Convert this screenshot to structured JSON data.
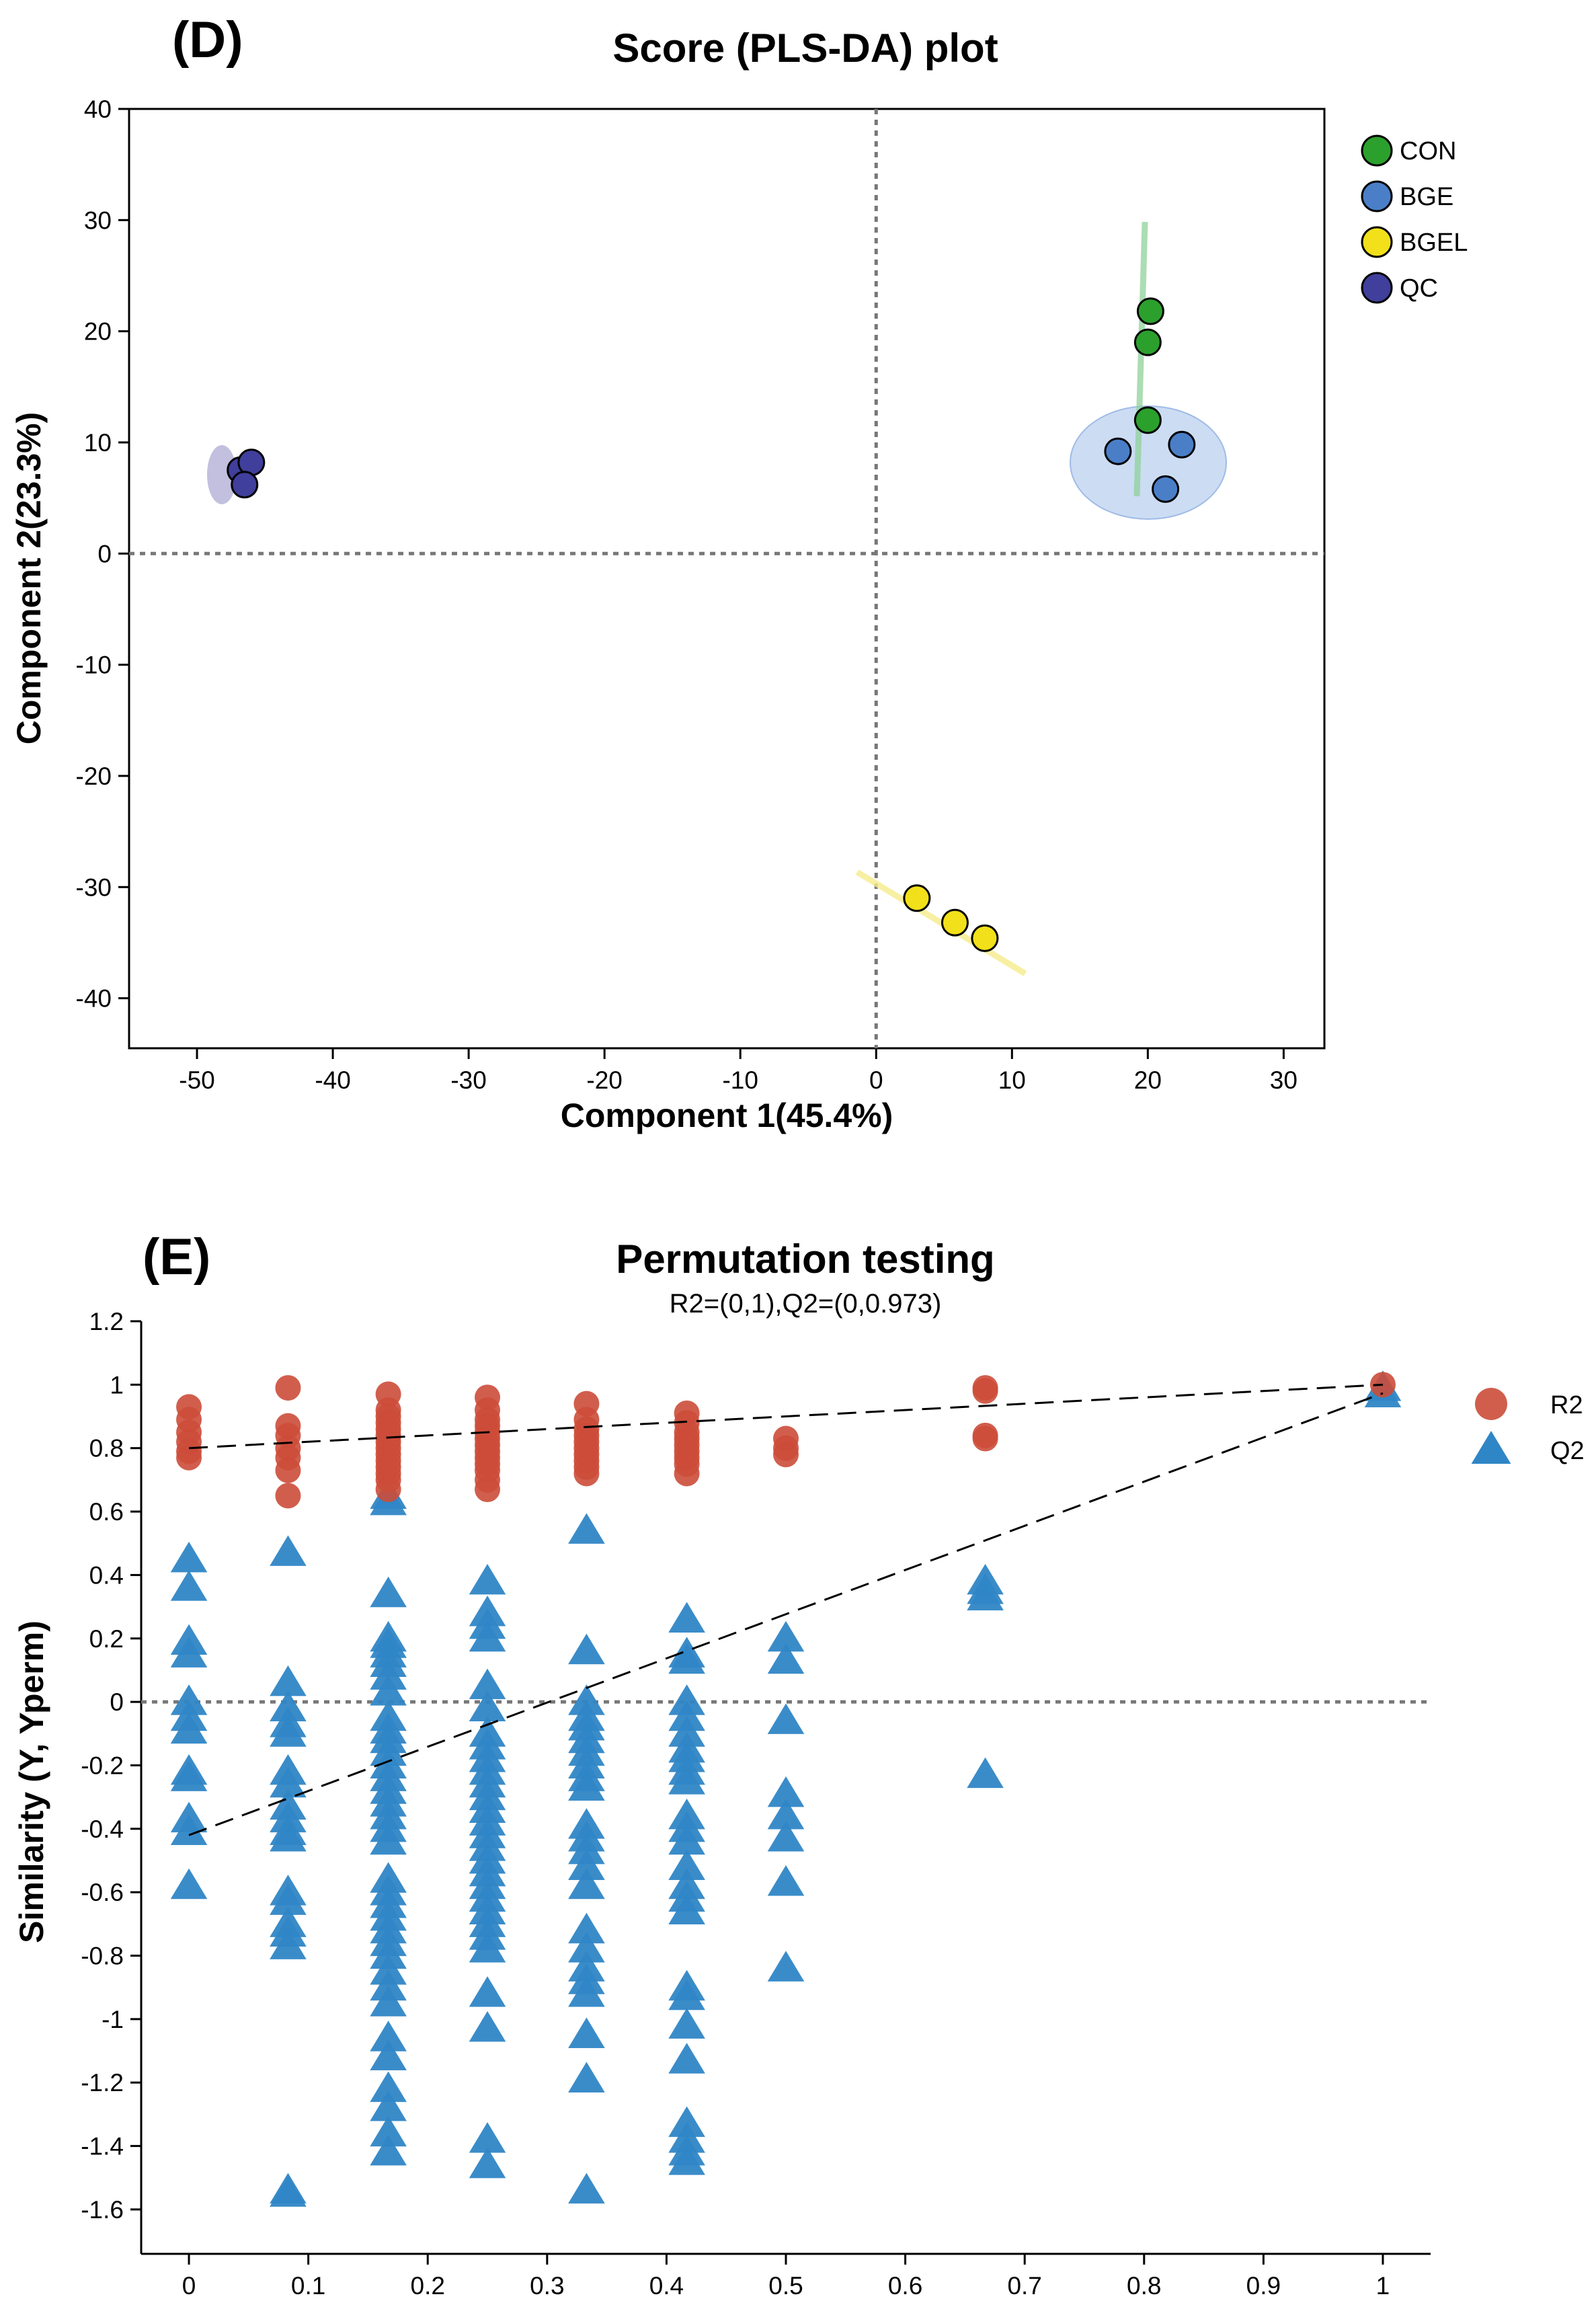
{
  "chart_data": [
    {
      "panel": "(D)",
      "type": "scatter",
      "title": "Score (PLS-DA) plot",
      "xlabel": "Component 1(45.4%)",
      "ylabel": "Component 2(23.3%)",
      "xlim": [
        -55,
        33
      ],
      "ylim": [
        -44.5,
        40
      ],
      "xticks": [
        -50,
        -40,
        -30,
        -20,
        -10,
        0,
        10,
        20,
        30
      ],
      "yticks": [
        40,
        30,
        20,
        10,
        0,
        -10,
        -20,
        -30,
        -40
      ],
      "xtick_labels": [
        "-50",
        "-40",
        "-30",
        "-20",
        "-10",
        "0",
        "10",
        "20",
        "30"
      ],
      "ytick_labels": [
        "40",
        "30",
        "20",
        "10",
        "0",
        "-10",
        "-20",
        "-30",
        "-40"
      ],
      "reference_lines": {
        "x": 0,
        "y": 0
      },
      "legend_position": "right",
      "series": [
        {
          "name": "CON",
          "color": "#2ca02c",
          "points": [
            [
              20.2,
              21.8
            ],
            [
              20.0,
              19.0
            ],
            [
              20.0,
              12.0
            ]
          ]
        },
        {
          "name": "BGE",
          "color": "#4a7fc8",
          "points": [
            [
              17.8,
              9.2
            ],
            [
              22.5,
              9.8
            ],
            [
              21.3,
              5.8
            ]
          ]
        },
        {
          "name": "BGEL",
          "color": "#f2e01a",
          "points": [
            [
              3.0,
              -31.0
            ],
            [
              5.8,
              -33.2
            ],
            [
              8.0,
              -34.6
            ]
          ]
        },
        {
          "name": "QC",
          "color": "#403f9c",
          "points": [
            [
              -46.8,
              7.5
            ],
            [
              -46.0,
              8.2
            ],
            [
              -46.5,
              6.2
            ]
          ]
        }
      ]
    },
    {
      "panel": "(E)",
      "type": "scatter",
      "title": "Permutation testing",
      "subtitle": "R2=(0,1),Q2=(0,0.973)",
      "xlabel": "",
      "ylabel": "Similarity (Y, Yperm)",
      "xlim": [
        -0.04,
        1.04
      ],
      "ylim": [
        -1.74,
        1.2
      ],
      "xticks": [
        0,
        0.1,
        0.2,
        0.3,
        0.4,
        0.5,
        0.6,
        0.7,
        0.8,
        0.9,
        1
      ],
      "xtick_labels": [
        "0",
        "0.1",
        "0.2",
        "0.3",
        "0.4",
        "0.5",
        "0.6",
        "0.7",
        "0.8",
        "0.9",
        "1"
      ],
      "yticks": [
        1.2,
        1,
        0.8,
        0.6,
        0.4,
        0.2,
        0,
        -0.2,
        -0.4,
        -0.6,
        -0.8,
        -1,
        -1.2,
        -1.4,
        -1.6
      ],
      "ytick_labels": [
        "1.2",
        "1",
        "0.8",
        "0.6",
        "0.4",
        "0.2",
        "0",
        "-0.2",
        "-0.4",
        "-0.6",
        "-0.8",
        "-1",
        "-1.2",
        "-1.4",
        "-1.6"
      ],
      "reference_lines": {
        "y": 0
      },
      "legend_position": "right",
      "regression_lines": [
        {
          "name": "R2",
          "from": [
            0,
            0.8
          ],
          "to": [
            1,
            1.0
          ]
        },
        {
          "name": "Q2",
          "from": [
            0,
            -0.42
          ],
          "to": [
            1,
            0.973
          ]
        }
      ],
      "series": [
        {
          "name": "R2",
          "marker": "circle",
          "color": "#cc4c3a",
          "points": [
            [
              0,
              0.93
            ],
            [
              0,
              0.89
            ],
            [
              0,
              0.85
            ],
            [
              0,
              0.82
            ],
            [
              0,
              0.79
            ],
            [
              0,
              0.77
            ],
            [
              0.083,
              0.99
            ],
            [
              0.083,
              0.87
            ],
            [
              0.083,
              0.84
            ],
            [
              0.083,
              0.8
            ],
            [
              0.083,
              0.77
            ],
            [
              0.083,
              0.73
            ],
            [
              0.083,
              0.65
            ],
            [
              0.167,
              0.97
            ],
            [
              0.167,
              0.92
            ],
            [
              0.167,
              0.9
            ],
            [
              0.167,
              0.88
            ],
            [
              0.167,
              0.86
            ],
            [
              0.167,
              0.84
            ],
            [
              0.167,
              0.82
            ],
            [
              0.167,
              0.8
            ],
            [
              0.167,
              0.78
            ],
            [
              0.167,
              0.76
            ],
            [
              0.167,
              0.74
            ],
            [
              0.167,
              0.72
            ],
            [
              0.167,
              0.7
            ],
            [
              0.167,
              0.67
            ],
            [
              0.25,
              0.96
            ],
            [
              0.25,
              0.92
            ],
            [
              0.25,
              0.89
            ],
            [
              0.25,
              0.87
            ],
            [
              0.25,
              0.85
            ],
            [
              0.25,
              0.83
            ],
            [
              0.25,
              0.81
            ],
            [
              0.25,
              0.79
            ],
            [
              0.25,
              0.77
            ],
            [
              0.25,
              0.75
            ],
            [
              0.25,
              0.73
            ],
            [
              0.25,
              0.7
            ],
            [
              0.25,
              0.67
            ],
            [
              0.333,
              0.94
            ],
            [
              0.333,
              0.89
            ],
            [
              0.333,
              0.86
            ],
            [
              0.333,
              0.84
            ],
            [
              0.333,
              0.82
            ],
            [
              0.333,
              0.8
            ],
            [
              0.333,
              0.78
            ],
            [
              0.333,
              0.76
            ],
            [
              0.333,
              0.74
            ],
            [
              0.333,
              0.72
            ],
            [
              0.417,
              0.91
            ],
            [
              0.417,
              0.88
            ],
            [
              0.417,
              0.85
            ],
            [
              0.417,
              0.83
            ],
            [
              0.417,
              0.81
            ],
            [
              0.417,
              0.79
            ],
            [
              0.417,
              0.77
            ],
            [
              0.417,
              0.75
            ],
            [
              0.417,
              0.72
            ],
            [
              0.5,
              0.83
            ],
            [
              0.5,
              0.8
            ],
            [
              0.5,
              0.78
            ],
            [
              0.667,
              0.99
            ],
            [
              0.667,
              0.98
            ],
            [
              0.667,
              0.84
            ],
            [
              0.667,
              0.83
            ],
            [
              1,
              1.0
            ]
          ]
        },
        {
          "name": "Q2",
          "marker": "triangle",
          "color": "#2f86c6",
          "points": [
            [
              0,
              0.45
            ],
            [
              0,
              0.36
            ],
            [
              0,
              0.19
            ],
            [
              0,
              0.15
            ],
            [
              0,
              0.0
            ],
            [
              0,
              -0.05
            ],
            [
              0,
              -0.09
            ],
            [
              0,
              -0.22
            ],
            [
              0,
              -0.24
            ],
            [
              0,
              -0.37
            ],
            [
              0,
              -0.41
            ],
            [
              0,
              -0.58
            ],
            [
              0.083,
              0.47
            ],
            [
              0.083,
              0.06
            ],
            [
              0.083,
              -0.02
            ],
            [
              0.083,
              -0.07
            ],
            [
              0.083,
              -0.1
            ],
            [
              0.083,
              -0.22
            ],
            [
              0.083,
              -0.26
            ],
            [
              0.083,
              -0.33
            ],
            [
              0.083,
              -0.37
            ],
            [
              0.083,
              -0.41
            ],
            [
              0.083,
              -0.43
            ],
            [
              0.083,
              -0.6
            ],
            [
              0.083,
              -0.63
            ],
            [
              0.083,
              -0.7
            ],
            [
              0.083,
              -0.73
            ],
            [
              0.083,
              -0.77
            ],
            [
              0.083,
              -1.54
            ],
            [
              0.083,
              -1.55
            ],
            [
              0.167,
              0.65
            ],
            [
              0.167,
              0.63
            ],
            [
              0.167,
              0.34
            ],
            [
              0.167,
              0.2
            ],
            [
              0.167,
              0.18
            ],
            [
              0.167,
              0.15
            ],
            [
              0.167,
              0.12
            ],
            [
              0.167,
              0.08
            ],
            [
              0.167,
              0.03
            ],
            [
              0.167,
              -0.05
            ],
            [
              0.167,
              -0.09
            ],
            [
              0.167,
              -0.12
            ],
            [
              0.167,
              -0.16
            ],
            [
              0.167,
              -0.2
            ],
            [
              0.167,
              -0.24
            ],
            [
              0.167,
              -0.28
            ],
            [
              0.167,
              -0.32
            ],
            [
              0.167,
              -0.36
            ],
            [
              0.167,
              -0.4
            ],
            [
              0.167,
              -0.44
            ],
            [
              0.167,
              -0.56
            ],
            [
              0.167,
              -0.6
            ],
            [
              0.167,
              -0.64
            ],
            [
              0.167,
              -0.68
            ],
            [
              0.167,
              -0.72
            ],
            [
              0.167,
              -0.76
            ],
            [
              0.167,
              -0.8
            ],
            [
              0.167,
              -0.85
            ],
            [
              0.167,
              -0.9
            ],
            [
              0.167,
              -0.95
            ],
            [
              0.167,
              -1.06
            ],
            [
              0.167,
              -1.12
            ],
            [
              0.167,
              -1.22
            ],
            [
              0.167,
              -1.28
            ],
            [
              0.167,
              -1.36
            ],
            [
              0.167,
              -1.42
            ],
            [
              0.25,
              0.38
            ],
            [
              0.25,
              0.28
            ],
            [
              0.25,
              0.24
            ],
            [
              0.25,
              0.2
            ],
            [
              0.25,
              0.05
            ],
            [
              0.25,
              -0.02
            ],
            [
              0.25,
              -0.1
            ],
            [
              0.25,
              -0.14
            ],
            [
              0.25,
              -0.18
            ],
            [
              0.25,
              -0.22
            ],
            [
              0.25,
              -0.26
            ],
            [
              0.25,
              -0.3
            ],
            [
              0.25,
              -0.34
            ],
            [
              0.25,
              -0.38
            ],
            [
              0.25,
              -0.42
            ],
            [
              0.25,
              -0.46
            ],
            [
              0.25,
              -0.5
            ],
            [
              0.25,
              -0.54
            ],
            [
              0.25,
              -0.58
            ],
            [
              0.25,
              -0.62
            ],
            [
              0.25,
              -0.66
            ],
            [
              0.25,
              -0.7
            ],
            [
              0.25,
              -0.74
            ],
            [
              0.25,
              -0.78
            ],
            [
              0.25,
              -0.92
            ],
            [
              0.25,
              -1.03
            ],
            [
              0.25,
              -1.38
            ],
            [
              0.25,
              -1.46
            ],
            [
              0.333,
              0.54
            ],
            [
              0.333,
              0.16
            ],
            [
              0.333,
              0.0
            ],
            [
              0.333,
              -0.05
            ],
            [
              0.333,
              -0.08
            ],
            [
              0.333,
              -0.12
            ],
            [
              0.333,
              -0.16
            ],
            [
              0.333,
              -0.2
            ],
            [
              0.333,
              -0.24
            ],
            [
              0.333,
              -0.27
            ],
            [
              0.333,
              -0.39
            ],
            [
              0.333,
              -0.43
            ],
            [
              0.333,
              -0.47
            ],
            [
              0.333,
              -0.52
            ],
            [
              0.333,
              -0.58
            ],
            [
              0.333,
              -0.72
            ],
            [
              0.333,
              -0.78
            ],
            [
              0.333,
              -0.84
            ],
            [
              0.333,
              -0.88
            ],
            [
              0.333,
              -0.92
            ],
            [
              0.333,
              -1.05
            ],
            [
              0.333,
              -1.19
            ],
            [
              0.333,
              -1.54
            ],
            [
              0.417,
              0.26
            ],
            [
              0.417,
              0.15
            ],
            [
              0.417,
              0.13
            ],
            [
              0.417,
              0.0
            ],
            [
              0.417,
              -0.05
            ],
            [
              0.417,
              -0.1
            ],
            [
              0.417,
              -0.15
            ],
            [
              0.417,
              -0.18
            ],
            [
              0.417,
              -0.22
            ],
            [
              0.417,
              -0.25
            ],
            [
              0.417,
              -0.36
            ],
            [
              0.417,
              -0.4
            ],
            [
              0.417,
              -0.44
            ],
            [
              0.417,
              -0.52
            ],
            [
              0.417,
              -0.58
            ],
            [
              0.417,
              -0.62
            ],
            [
              0.417,
              -0.66
            ],
            [
              0.417,
              -0.9
            ],
            [
              0.417,
              -0.93
            ],
            [
              0.417,
              -1.02
            ],
            [
              0.417,
              -1.13
            ],
            [
              0.417,
              -1.33
            ],
            [
              0.417,
              -1.38
            ],
            [
              0.417,
              -1.42
            ],
            [
              0.417,
              -1.45
            ],
            [
              0.5,
              0.2
            ],
            [
              0.5,
              0.13
            ],
            [
              0.5,
              -0.06
            ],
            [
              0.5,
              -0.29
            ],
            [
              0.5,
              -0.36
            ],
            [
              0.5,
              -0.43
            ],
            [
              0.5,
              -0.57
            ],
            [
              0.5,
              -0.84
            ],
            [
              0.667,
              0.38
            ],
            [
              0.667,
              0.35
            ],
            [
              0.667,
              0.33
            ],
            [
              0.667,
              -0.23
            ],
            [
              1,
              0.99
            ],
            [
              1,
              0.97
            ]
          ]
        }
      ]
    }
  ]
}
